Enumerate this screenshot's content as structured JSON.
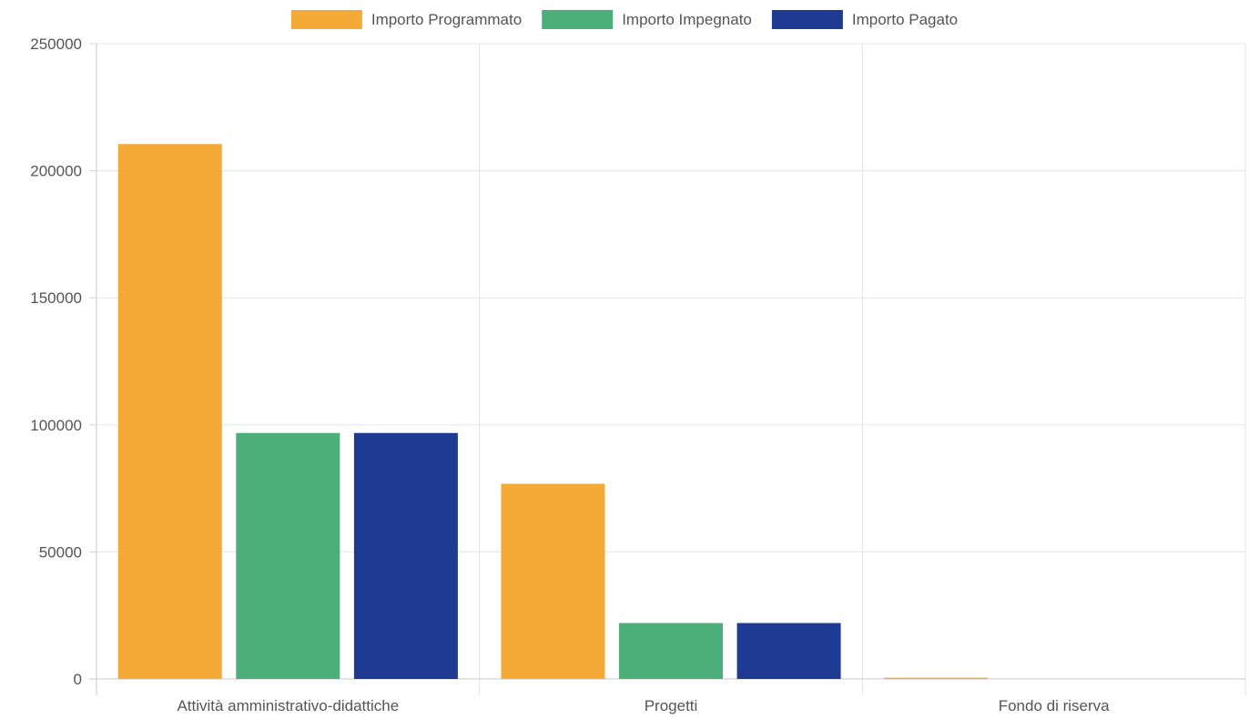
{
  "chart_data": {
    "type": "bar",
    "title": "",
    "xlabel": "",
    "ylabel": "",
    "categories": [
      "Attività amministrativo-didattiche",
      "Progetti",
      "Fondo di riserva"
    ],
    "series": [
      {
        "name": "Importo Programmato",
        "color": "#f5a936",
        "values": [
          210500,
          76800,
          500
        ]
      },
      {
        "name": "Importo Impegnato",
        "color": "#4caf7a",
        "values": [
          96800,
          22000,
          0
        ]
      },
      {
        "name": "Importo Pagato",
        "color": "#1f3a93",
        "values": [
          96800,
          22000,
          0
        ]
      }
    ],
    "ylim": [
      0,
      250000
    ],
    "yticks": [
      "0",
      "50000",
      "100000",
      "150000",
      "200000",
      "250000"
    ],
    "grid": true,
    "legend_position": "top-center"
  }
}
